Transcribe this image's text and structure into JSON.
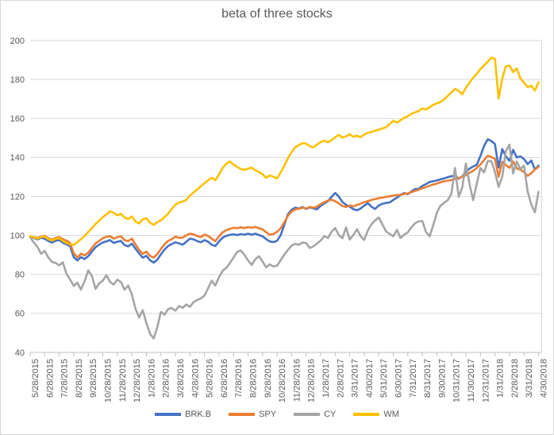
{
  "chart_data": {
    "type": "line",
    "title": "beta of three stocks",
    "xlabel": "",
    "ylabel": "",
    "ylim": [
      40,
      200
    ],
    "y_ticks": [
      40,
      60,
      80,
      100,
      120,
      140,
      160,
      180,
      200
    ],
    "grid": "horizontal",
    "legend_position": "bottom",
    "x_unit": "months since first label, step 0.25 per point",
    "x_step_months": 0.25,
    "x_tick_labels": [
      "5/28/2015",
      "6/28/2015",
      "7/28/2015",
      "8/28/2015",
      "9/28/2015",
      "10/28/2015",
      "11/28/2015",
      "12/28/2015",
      "1/28/2016",
      "2/28/2016",
      "3/28/2016",
      "4/28/2016",
      "5/28/2016",
      "6/28/2016",
      "7/28/2016",
      "8/28/2016",
      "9/28/2016",
      "10/28/2016",
      "11/28/2016",
      "12/28/2016",
      "1/28/2017",
      "2/28/2017",
      "3/31/2017",
      "4/30/2017",
      "5/31/2017",
      "6/30/2017",
      "7/31/2017",
      "8/31/2017",
      "9/30/2017",
      "10/31/2017",
      "11/30/2017",
      "12/31/2017",
      "1/31/2018",
      "2/28/2018",
      "3/31/2018",
      "4/30/2018"
    ],
    "theme": {
      "text_color": "#595959",
      "grid_color": "#d9d9d9",
      "axis_color": "#bfbfbf",
      "border_color": "#d9d9d9",
      "background": "#ffffff"
    },
    "series": [
      {
        "name": "BRK.B",
        "color": "#4472C4",
        "values": [
          99.5,
          98.7,
          98.0,
          98.8,
          98.3,
          97.2,
          96.4,
          97.3,
          97.6,
          96.3,
          95.4,
          94.6,
          88.8,
          87.2,
          88.9,
          87.9,
          89.4,
          91.8,
          94.0,
          95.3,
          96.4,
          97.0,
          97.6,
          96.2,
          96.8,
          97.2,
          95.1,
          94.4,
          95.8,
          93.2,
          90.8,
          88.6,
          89.6,
          87.3,
          86.1,
          87.5,
          90.3,
          92.8,
          94.6,
          95.6,
          96.5,
          95.9,
          95.3,
          96.7,
          98.4,
          98.0,
          97.1,
          96.5,
          97.6,
          96.8,
          95.2,
          94.6,
          96.9,
          98.9,
          99.8,
          100.3,
          100.6,
          100.2,
          100.7,
          100.4,
          100.9,
          100.4,
          100.9,
          100.2,
          99.6,
          98.1,
          96.9,
          96.6,
          97.3,
          100.2,
          105.6,
          110.9,
          113.2,
          114.3,
          113.8,
          114.6,
          113.6,
          114.4,
          113.9,
          113.4,
          115.2,
          116.4,
          117.6,
          119.8,
          121.8,
          119.9,
          117.2,
          115.7,
          114.8,
          113.5,
          112.9,
          113.8,
          115.3,
          116.6,
          114.7,
          113.6,
          115.4,
          116.2,
          116.7,
          116.9,
          118.2,
          119.4,
          120.9,
          121.7,
          121.2,
          122.6,
          123.8,
          123.9,
          125.4,
          126.3,
          127.4,
          127.8,
          128.2,
          128.8,
          129.3,
          129.9,
          130.4,
          130.8,
          129.1,
          130.2,
          132.6,
          134.3,
          135.4,
          136.2,
          140.8,
          145.9,
          149.3,
          148.4,
          146.9,
          134.8,
          144.3,
          140.6,
          138.3,
          143.9,
          140.0,
          140.6,
          139.2,
          136.6,
          138.4,
          133.9,
          135.8
        ]
      },
      {
        "name": "SPY",
        "color": "#ED7D31",
        "values": [
          99.6,
          99.1,
          98.7,
          99.4,
          99.8,
          98.6,
          97.9,
          98.7,
          99.2,
          98.1,
          97.3,
          96.2,
          90.9,
          88.7,
          90.6,
          89.8,
          91.2,
          93.6,
          95.9,
          97.2,
          98.6,
          99.3,
          99.7,
          98.4,
          99.1,
          99.6,
          97.6,
          97.1,
          98.4,
          95.4,
          92.6,
          90.6,
          91.7,
          89.6,
          88.7,
          90.4,
          93.1,
          95.5,
          97.2,
          98.1,
          99.4,
          98.8,
          98.9,
          100.1,
          100.9,
          100.6,
          99.7,
          99.2,
          100.4,
          99.8,
          98.3,
          97.1,
          99.6,
          101.6,
          102.7,
          103.4,
          103.9,
          103.7,
          104.2,
          103.8,
          104.3,
          103.9,
          104.4,
          103.7,
          103.1,
          101.6,
          100.4,
          100.8,
          101.9,
          103.7,
          106.8,
          110.1,
          112.3,
          113.4,
          113.7,
          114.3,
          113.8,
          114.6,
          114.2,
          114.8,
          116.1,
          117.1,
          117.9,
          118.4,
          117.6,
          116.4,
          115.1,
          114.6,
          115.4,
          114.9,
          115.7,
          116.3,
          117.1,
          117.6,
          118.2,
          118.7,
          119.1,
          119.4,
          119.8,
          120.1,
          120.4,
          120.8,
          120.7,
          121.3,
          121.6,
          122.2,
          122.9,
          123.4,
          124.2,
          124.8,
          125.5,
          126.1,
          126.6,
          127.3,
          127.8,
          128.1,
          128.4,
          128.9,
          129.4,
          130.1,
          130.9,
          132.1,
          133.2,
          134.6,
          136.4,
          138.7,
          140.9,
          140.2,
          139.3,
          130.1,
          137.8,
          136.1,
          134.7,
          137.9,
          134.4,
          133.8,
          132.4,
          130.6,
          131.9,
          133.8,
          135.2
        ]
      },
      {
        "name": "CY",
        "color": "#A5A5A5",
        "values": [
          99.1,
          96.4,
          94.2,
          90.6,
          92.1,
          88.7,
          86.4,
          85.9,
          84.7,
          86.2,
          80.3,
          77.4,
          74.1,
          75.8,
          72.3,
          76.6,
          82.1,
          79.2,
          72.6,
          75.4,
          76.8,
          79.6,
          76.1,
          74.8,
          77.3,
          76.1,
          72.2,
          74.3,
          69.8,
          62.4,
          57.9,
          61.7,
          55.1,
          49.6,
          47.2,
          52.8,
          60.8,
          59.4,
          62.2,
          62.8,
          61.4,
          63.8,
          62.9,
          64.6,
          63.4,
          65.8,
          66.9,
          67.7,
          69.2,
          72.9,
          76.8,
          74.3,
          78.6,
          81.9,
          83.4,
          85.8,
          88.7,
          91.6,
          92.3,
          90.1,
          87.2,
          84.9,
          87.8,
          89.4,
          86.6,
          83.7,
          85.2,
          84.1,
          84.6,
          87.4,
          90.2,
          92.6,
          94.8,
          95.7,
          95.2,
          96.4,
          96.1,
          93.6,
          94.4,
          95.8,
          97.4,
          99.6,
          98.7,
          101.9,
          103.8,
          100.2,
          98.6,
          104.1,
          97.9,
          100.3,
          103.2,
          99.6,
          97.7,
          102.6,
          105.8,
          107.7,
          109.2,
          105.6,
          102.1,
          100.8,
          99.6,
          102.8,
          98.7,
          100.4,
          101.6,
          104.2,
          106.3,
          107.2,
          107.4,
          101.8,
          99.6,
          105.2,
          111.6,
          115.3,
          116.8,
          118.1,
          121.3,
          134.6,
          119.8,
          124.6,
          136.9,
          126.3,
          118.1,
          126.6,
          134.6,
          132.3,
          138.2,
          138.1,
          132.6,
          124.9,
          130.1,
          143.2,
          146.6,
          131.8,
          137.9,
          134.1,
          135.8,
          122.6,
          115.8,
          111.9,
          122.4
        ]
      },
      {
        "name": "WM",
        "color": "#FFC000",
        "values": [
          99.6,
          99.0,
          98.4,
          99.2,
          99.4,
          98.1,
          97.4,
          98.2,
          98.6,
          97.2,
          96.1,
          95.4,
          95.2,
          96.6,
          98.1,
          99.6,
          101.9,
          103.8,
          105.9,
          107.6,
          109.4,
          110.8,
          112.4,
          111.6,
          110.3,
          111.1,
          109.2,
          108.4,
          109.8,
          107.1,
          106.2,
          108.3,
          108.9,
          106.6,
          105.4,
          106.8,
          107.8,
          109.4,
          111.2,
          113.6,
          115.8,
          116.9,
          117.4,
          118.2,
          120.4,
          122.1,
          123.6,
          125.2,
          126.8,
          128.3,
          129.6,
          128.4,
          131.2,
          134.6,
          136.8,
          137.9,
          136.4,
          135.2,
          134.1,
          133.6,
          134.2,
          134.8,
          133.4,
          132.6,
          131.4,
          129.6,
          130.8,
          130.1,
          129.2,
          132.4,
          135.8,
          139.6,
          142.8,
          145.2,
          146.4,
          147.3,
          147.1,
          145.8,
          145.2,
          146.6,
          147.9,
          148.6,
          147.8,
          148.9,
          150.4,
          151.6,
          150.2,
          150.8,
          151.9,
          150.6,
          151.2,
          150.4,
          151.8,
          152.6,
          153.1,
          153.8,
          154.2,
          154.9,
          155.6,
          157.1,
          158.8,
          157.9,
          159.2,
          160.3,
          161.2,
          162.4,
          163.1,
          163.8,
          165.2,
          164.6,
          165.8,
          166.9,
          167.8,
          168.4,
          169.8,
          171.6,
          173.4,
          175.2,
          174.1,
          172.4,
          175.8,
          178.4,
          180.9,
          182.8,
          185.4,
          187.2,
          189.1,
          191.2,
          190.6,
          170.2,
          180.4,
          186.8,
          187.1,
          183.8,
          185.7,
          180.6,
          178.4,
          176.1,
          176.8,
          174.3,
          178.6
        ]
      }
    ]
  }
}
